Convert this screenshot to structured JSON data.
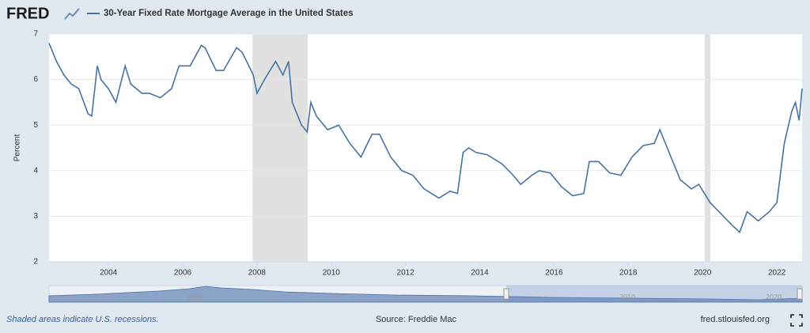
{
  "chart_data": {
    "type": "line",
    "logo": "FRED",
    "title": "30-Year Fixed Rate Mortgage Average in the United States",
    "y_label": "Percent",
    "note": "Shaded areas indicate U.S. recessions.",
    "source": "Source: Freddie Mac",
    "site": "fred.stlouisfed.org",
    "xlim": [
      2002.4,
      2022.68
    ],
    "xticks": [
      2004,
      2006,
      2008,
      2010,
      2012,
      2014,
      2016,
      2018,
      2020,
      2022
    ],
    "ylim": [
      2,
      7
    ],
    "yticks": [
      2,
      3,
      4,
      5,
      6,
      7
    ],
    "grid": true,
    "recessions": [
      [
        2007.88,
        2009.37
      ],
      [
        2020.06,
        2020.21
      ]
    ],
    "navigator_labels": [
      "2000",
      "2010",
      "2020"
    ],
    "series": [
      {
        "name": "30-Year Fixed Rate Mortgage Average in the United States",
        "color": "#4572a7",
        "x": [
          2002.4,
          2002.6,
          2002.8,
          2003.0,
          2003.2,
          2003.45,
          2003.55,
          2003.7,
          2003.8,
          2004.0,
          2004.2,
          2004.45,
          2004.6,
          2004.9,
          2005.1,
          2005.4,
          2005.7,
          2005.9,
          2006.2,
          2006.5,
          2006.6,
          2006.9,
          2007.1,
          2007.45,
          2007.6,
          2007.9,
          2008.0,
          2008.2,
          2008.5,
          2008.7,
          2008.85,
          2008.95,
          2009.2,
          2009.35,
          2009.45,
          2009.6,
          2009.9,
          2010.2,
          2010.5,
          2010.8,
          2011.1,
          2011.3,
          2011.6,
          2011.9,
          2012.2,
          2012.5,
          2012.9,
          2013.2,
          2013.4,
          2013.55,
          2013.7,
          2013.9,
          2014.2,
          2014.6,
          2014.9,
          2015.1,
          2015.4,
          2015.6,
          2015.9,
          2016.2,
          2016.5,
          2016.8,
          2016.95,
          2017.2,
          2017.5,
          2017.8,
          2018.1,
          2018.4,
          2018.7,
          2018.85,
          2019.1,
          2019.4,
          2019.7,
          2019.9,
          2020.2,
          2020.5,
          2020.8,
          2021.0,
          2021.2,
          2021.5,
          2021.8,
          2022.0,
          2022.2,
          2022.4,
          2022.5,
          2022.6,
          2022.68
        ],
        "values": [
          6.8,
          6.4,
          6.1,
          5.9,
          5.8,
          5.25,
          5.2,
          6.3,
          6.0,
          5.8,
          5.5,
          6.3,
          5.9,
          5.7,
          5.7,
          5.6,
          5.8,
          6.3,
          6.3,
          6.75,
          6.7,
          6.2,
          6.2,
          6.7,
          6.6,
          6.1,
          5.7,
          6.0,
          6.4,
          6.1,
          6.4,
          5.5,
          5.0,
          4.85,
          5.5,
          5.2,
          4.9,
          5.0,
          4.6,
          4.3,
          4.8,
          4.8,
          4.3,
          4.0,
          3.9,
          3.6,
          3.4,
          3.55,
          3.5,
          4.4,
          4.5,
          4.4,
          4.35,
          4.15,
          3.9,
          3.7,
          3.9,
          4.0,
          3.95,
          3.65,
          3.45,
          3.5,
          4.2,
          4.2,
          3.95,
          3.9,
          4.3,
          4.55,
          4.6,
          4.9,
          4.4,
          3.8,
          3.6,
          3.7,
          3.3,
          3.05,
          2.8,
          2.65,
          3.1,
          2.9,
          3.1,
          3.3,
          4.6,
          5.3,
          5.5,
          5.1,
          5.8
        ]
      }
    ]
  }
}
